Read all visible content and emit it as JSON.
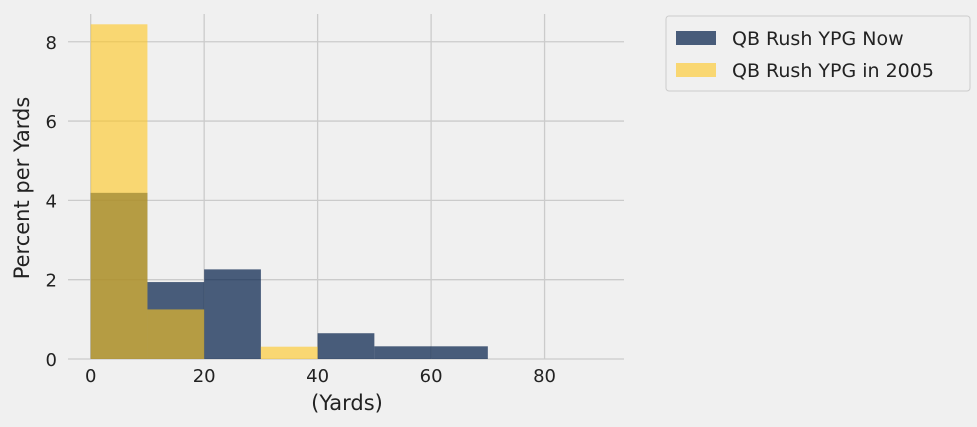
{
  "chart_data": {
    "type": "histogram",
    "xlabel": "(Yards)",
    "ylabel": "Percent per Yards",
    "xlim": [
      -4,
      94
    ],
    "ylim": [
      0,
      8.7
    ],
    "x_ticks": [
      0,
      20,
      40,
      60,
      80
    ],
    "y_ticks": [
      0,
      2,
      4,
      6,
      8
    ],
    "bins": [
      0,
      10,
      20,
      30,
      40,
      50,
      60,
      70
    ],
    "grid": true,
    "legend_position": "outside-right",
    "series": [
      {
        "name": "QB Rush YPG Now",
        "color": "#001c47",
        "opacity": 0.7,
        "values": [
          4.19,
          1.94,
          2.26,
          0,
          0.65,
          0.32,
          0.32
        ]
      },
      {
        "name": "QB Rush YPG in 2005",
        "color": "#ffc71e",
        "opacity": 0.6,
        "values": [
          8.44,
          1.25,
          0,
          0.31,
          0,
          0,
          0
        ]
      }
    ]
  }
}
